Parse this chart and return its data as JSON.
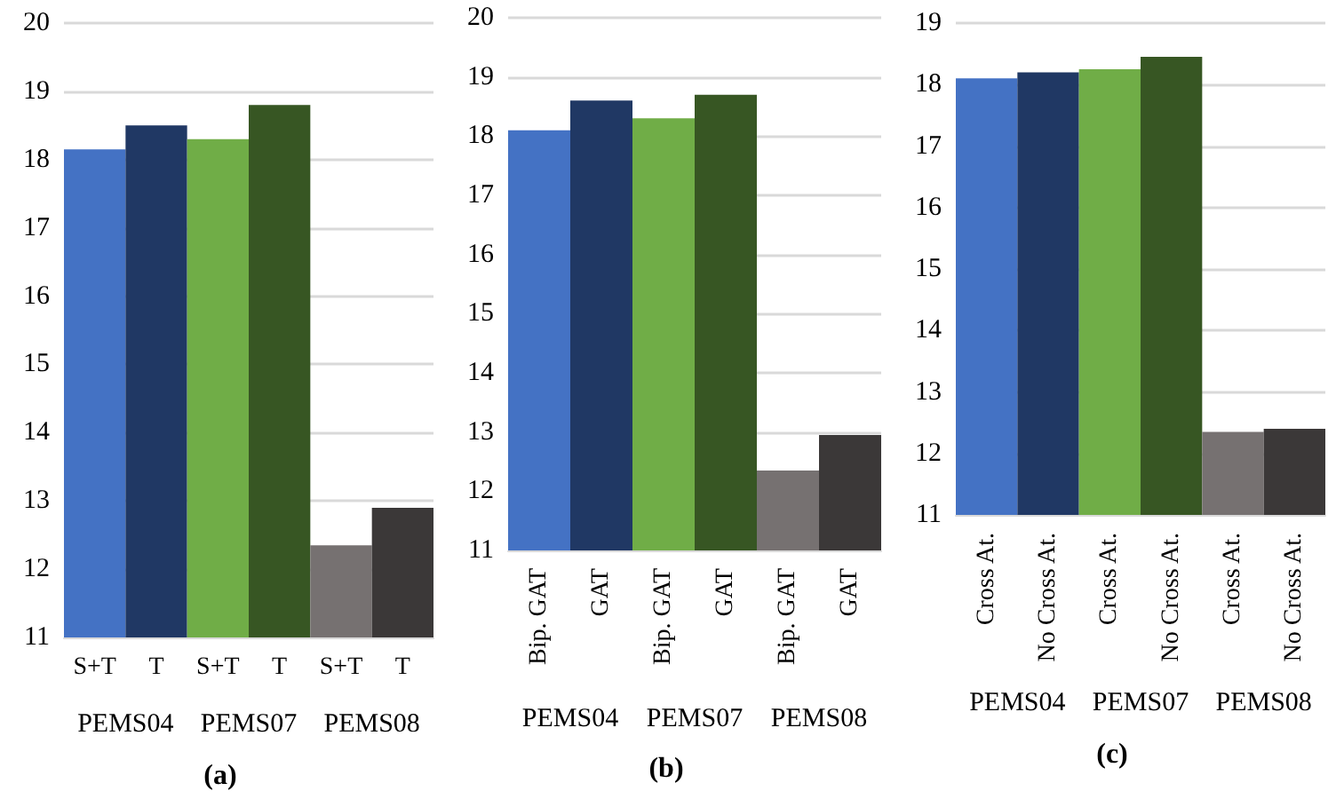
{
  "chart_data": [
    {
      "type": "bar",
      "title": "(a)",
      "categories": [
        "S+T",
        "T",
        "S+T",
        "T",
        "S+T",
        "T"
      ],
      "values": [
        18.15,
        18.5,
        18.3,
        18.8,
        12.35,
        12.9
      ],
      "colors": [
        "#4472c4",
        "#203864",
        "#70ad47",
        "#375623",
        "#767171",
        "#3b3838"
      ],
      "ylim": [
        11,
        20
      ],
      "yticks": [
        11,
        12,
        13,
        14,
        15,
        16,
        17,
        18,
        19,
        20
      ],
      "grid": "y",
      "annotations": [
        "PEMS04",
        "PEMS07",
        "PEMS08"
      ]
    },
    {
      "type": "bar",
      "title": "(b)",
      "categories": [
        "Bip. GAT",
        "GAT",
        "Bip. GAT",
        "GAT",
        "Bip. GAT",
        "GAT"
      ],
      "values": [
        18.1,
        18.6,
        18.3,
        18.7,
        12.35,
        12.95
      ],
      "colors": [
        "#4472c4",
        "#203864",
        "#70ad47",
        "#375623",
        "#767171",
        "#3b3838"
      ],
      "ylim": [
        11,
        20
      ],
      "yticks": [
        11,
        12,
        13,
        14,
        15,
        16,
        17,
        18,
        19,
        20
      ],
      "grid": "y",
      "annotations": [
        "PEMS04",
        "PEMS07",
        "PEMS08"
      ]
    },
    {
      "type": "bar",
      "title": "(c)",
      "categories": [
        "Cross At.",
        "No Cross At.",
        "Cross At.",
        "No Cross At.",
        "Cross At.",
        "No Cross At."
      ],
      "values": [
        18.1,
        18.2,
        18.25,
        18.45,
        12.35,
        12.4
      ],
      "colors": [
        "#4472c4",
        "#203864",
        "#70ad47",
        "#375623",
        "#767171",
        "#3b3838"
      ],
      "ylim": [
        11,
        19
      ],
      "yticks": [
        11,
        12,
        13,
        14,
        15,
        16,
        17,
        18,
        19
      ],
      "grid": "y",
      "annotations": [
        "PEMS04",
        "PEMS07",
        "PEMS08"
      ]
    }
  ]
}
